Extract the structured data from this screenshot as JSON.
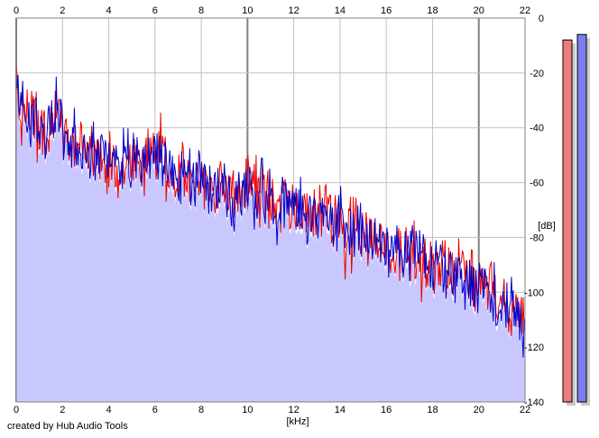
{
  "chart_data": {
    "type": "area",
    "xlabel": "[kHz]",
    "ylabel": "[dB]",
    "xlim": [
      0,
      22
    ],
    "ylim": [
      -140,
      0
    ],
    "x_ticks": [
      0,
      2,
      4,
      6,
      8,
      10,
      12,
      14,
      16,
      18,
      20,
      22
    ],
    "y_ticks": [
      0,
      -20,
      -40,
      -60,
      -80,
      -100,
      -120,
      -140
    ],
    "grid": true,
    "colors": {
      "fill": "#c8c8ff",
      "left_channel": "#ee0000",
      "right_channel": "#0000cc",
      "grid": "#c0c0c0",
      "grid_major": "#808080"
    },
    "series": [
      {
        "color": "#ee0000",
        "x": [
          0,
          0.25,
          0.5,
          0.75,
          1,
          1.25,
          1.5,
          1.75,
          2,
          2.5,
          3,
          3.5,
          4,
          4.5,
          5,
          5.5,
          6,
          6.25,
          6.5,
          7,
          7.5,
          8,
          8.5,
          9,
          9.5,
          10,
          10.5,
          11,
          11.5,
          12,
          12.5,
          13,
          13.5,
          14,
          14.5,
          15,
          15.5,
          16,
          16.5,
          17,
          17.5,
          18,
          18.5,
          19,
          19.5,
          20,
          20.5,
          21,
          21.5,
          22
        ],
        "values": [
          -28,
          -33,
          -35,
          -38,
          -40,
          -41,
          -38,
          -33,
          -42,
          -45,
          -47,
          -50,
          -52,
          -54,
          -53,
          -54,
          -52,
          -45,
          -56,
          -57,
          -58,
          -59,
          -62,
          -63,
          -66,
          -58,
          -64,
          -67,
          -68,
          -66,
          -70,
          -72,
          -72,
          -74,
          -76,
          -79,
          -80,
          -84,
          -85,
          -86,
          -88,
          -90,
          -91,
          -92,
          -94,
          -96,
          -99,
          -103,
          -106,
          -112
        ]
      },
      {
        "color": "#0000cc",
        "x": [
          0,
          0.25,
          0.5,
          0.75,
          1,
          1.25,
          1.5,
          1.75,
          2,
          2.5,
          3,
          3.5,
          4,
          4.5,
          5,
          5.5,
          6,
          6.25,
          6.5,
          7,
          7.5,
          8,
          8.5,
          9,
          9.5,
          10,
          10.5,
          11,
          11.5,
          12,
          12.5,
          13,
          13.5,
          14,
          14.5,
          15,
          15.5,
          16,
          16.5,
          17,
          17.5,
          18,
          18.5,
          19,
          19.5,
          20,
          20.5,
          21,
          21.5,
          22
        ],
        "values": [
          -25,
          -30,
          -33,
          -37,
          -39,
          -42,
          -36,
          -30,
          -40,
          -44,
          -46,
          -49,
          -51,
          -53,
          -53,
          -55,
          -53,
          -50,
          -55,
          -57,
          -58,
          -59,
          -61,
          -63,
          -68,
          -60,
          -63,
          -66,
          -67,
          -67,
          -70,
          -71,
          -72,
          -74,
          -77,
          -79,
          -81,
          -83,
          -85,
          -86,
          -88,
          -90,
          -92,
          -93,
          -95,
          -97,
          -100,
          -104,
          -108,
          -118
        ]
      }
    ],
    "level_meters": [
      {
        "channel": "left",
        "value": -8,
        "color": "#ee7c7c"
      },
      {
        "channel": "right",
        "value": -6,
        "color": "#7c7cee"
      }
    ]
  },
  "footer": {
    "credit": "created by Hub Audio Tools"
  }
}
